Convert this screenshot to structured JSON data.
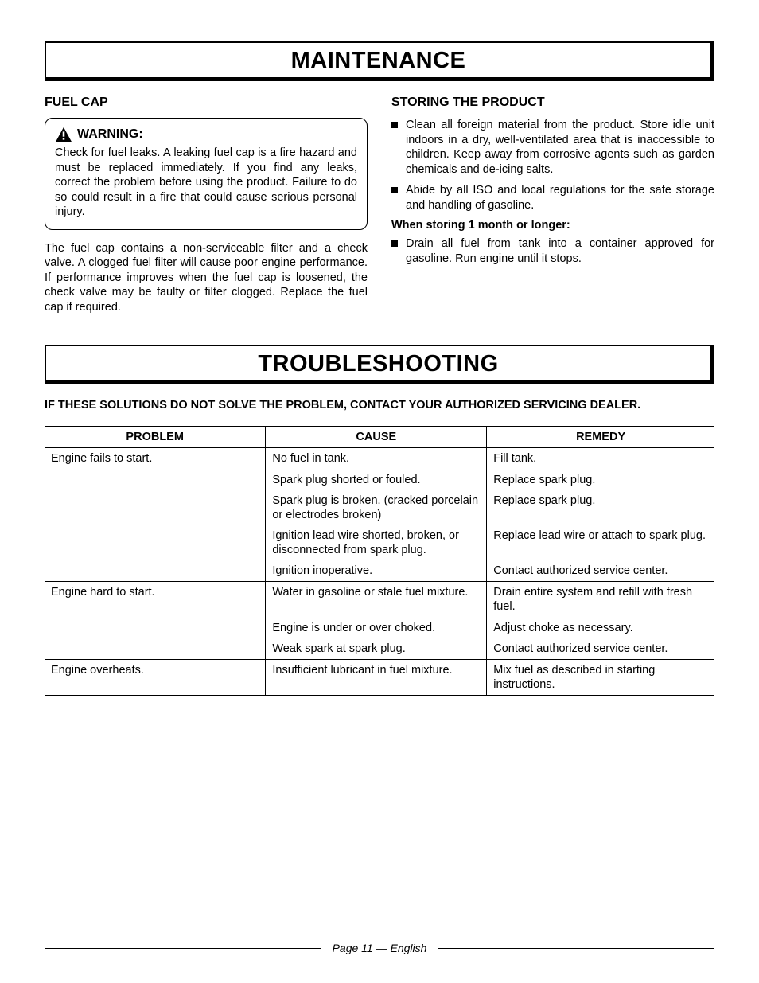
{
  "maintenance": {
    "title": "MAINTENANCE",
    "left": {
      "heading": "FUEL CAP",
      "warning_label": "WARNING:",
      "warning_body": "Check for fuel leaks. A leaking fuel cap is a fire hazard and must be replaced immediately. If you find any leaks, correct the problem before using the product. Failure to do so could result in a fire that could cause serious personal injury.",
      "body": "The fuel cap contains a non-serviceable filter and a check valve. A clogged fuel filter will cause poor engine performance. If performance improves when the fuel cap is loosened, the check valve may be faulty or filter clogged. Replace the fuel cap if required."
    },
    "right": {
      "heading": "STORING THE PRODUCT",
      "bullets": [
        "Clean all foreign material from the product. Store idle unit indoors in a dry, well-ventilated area that is inaccessible to children. Keep away from corrosive agents such as garden chemicals and de-icing salts.",
        "Abide by all ISO and local regulations for the safe storage and handling of gasoline."
      ],
      "bold_line": "When storing 1 month or longer:",
      "bullets2": [
        "Drain all fuel from tank into a container approved for gasoline. Run engine until it stops."
      ]
    }
  },
  "troubleshooting": {
    "title": "TROUBLESHOOTING",
    "instruction": "IF THESE SOLUTIONS DO NOT SOLVE THE PROBLEM, CONTACT YOUR AUTHORIZED SERVICING DEALER.",
    "columns": [
      "PROBLEM",
      "CAUSE",
      "REMEDY"
    ],
    "groups": [
      {
        "problem": "Engine fails to start.",
        "rows": [
          {
            "cause": "No fuel in tank.",
            "remedy": "Fill tank."
          },
          {
            "cause": "Spark plug shorted or fouled.",
            "remedy": "Replace spark plug."
          },
          {
            "cause": "Spark plug is broken. (cracked porcelain or electrodes broken)",
            "remedy": "Replace spark plug."
          },
          {
            "cause": "Ignition lead wire shorted, broken, or disconnected from spark plug.",
            "remedy": "Replace lead wire or attach to spark plug."
          },
          {
            "cause": "Ignition inoperative.",
            "remedy": "Contact authorized service center."
          }
        ]
      },
      {
        "problem": "Engine hard to start.",
        "rows": [
          {
            "cause": "Water in gasoline or stale fuel mixture.",
            "remedy": "Drain entire system and refill with fresh fuel."
          },
          {
            "cause": "Engine is under or over choked.",
            "remedy": "Adjust choke as necessary."
          },
          {
            "cause": "Weak spark at spark plug.",
            "remedy": "Contact authorized service center."
          }
        ]
      },
      {
        "problem": "Engine overheats.",
        "rows": [
          {
            "cause": "Insufficient lubricant in fuel mixture.",
            "remedy": "Mix fuel as described in starting instructions."
          }
        ]
      }
    ]
  },
  "footer": "Page 11 — English",
  "colors": {
    "text": "#000000",
    "bg": "#ffffff"
  }
}
